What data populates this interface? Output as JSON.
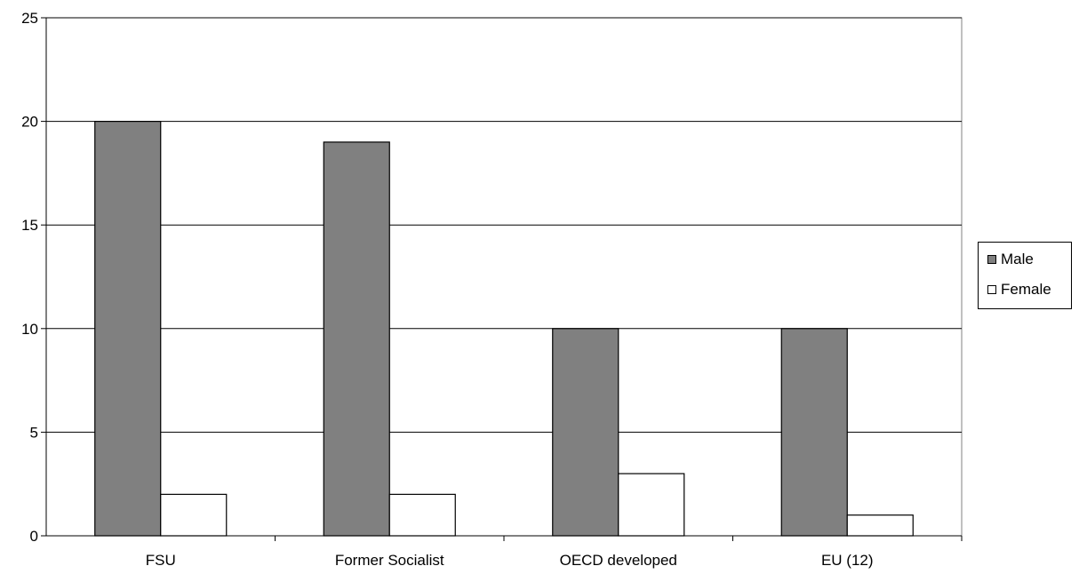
{
  "chart_data": {
    "type": "bar",
    "title": "",
    "xlabel": "",
    "ylabel": "",
    "categories": [
      "FSU",
      "Former Socialist",
      "OECD developed",
      "EU (12)"
    ],
    "series": [
      {
        "name": "Male",
        "values": [
          20,
          19,
          10,
          10
        ],
        "color": "#808080"
      },
      {
        "name": "Female",
        "values": [
          2,
          2,
          3,
          1
        ],
        "color": "#ffffff"
      }
    ],
    "ylim": [
      0,
      25
    ],
    "yticks": [
      0,
      5,
      10,
      15,
      20,
      25
    ],
    "grid": true,
    "legend_position": "right"
  }
}
